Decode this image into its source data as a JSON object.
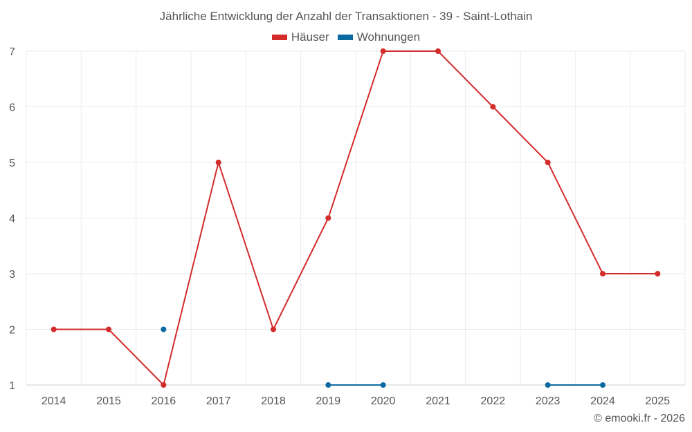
{
  "chart_data": {
    "type": "line",
    "title": "Jährliche Entwicklung der Anzahl der Transaktionen - 39 - Saint-Lothain",
    "categories": [
      "2014",
      "2015",
      "2016",
      "2017",
      "2018",
      "2019",
      "2020",
      "2021",
      "2022",
      "2023",
      "2024",
      "2025"
    ],
    "ylim": [
      1,
      7
    ],
    "yticks": [
      "1",
      "2",
      "3",
      "4",
      "5",
      "6",
      "7"
    ],
    "grid": true,
    "legend_position": "top-center",
    "series": [
      {
        "name": "Häuser",
        "color": "#d42b2b",
        "values": [
          2,
          2,
          1,
          5,
          2,
          4,
          7,
          7,
          6,
          5,
          3,
          3
        ]
      },
      {
        "name": "Wohnungen",
        "color": "#0b6aa2",
        "values": [
          null,
          null,
          2,
          null,
          null,
          1,
          1,
          null,
          null,
          1,
          1,
          null
        ]
      }
    ]
  },
  "legend": {
    "houses_label": "Häuser",
    "apartments_label": "Wohnungen",
    "houses_color": "#d42b2b",
    "apartments_color": "#0b6aa2"
  },
  "credit": "© emooki.fr - 2026"
}
